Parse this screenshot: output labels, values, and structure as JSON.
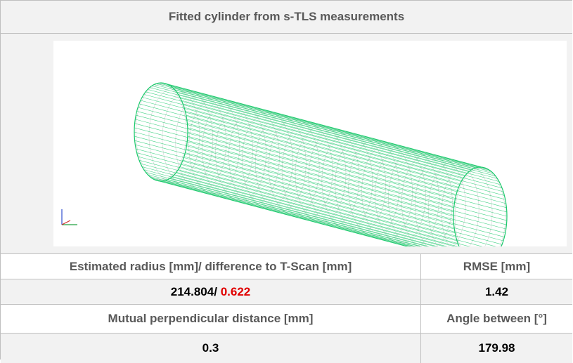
{
  "title": "Fitted cylinder from s-TLS measurements",
  "table": {
    "rows": [
      [
        "Estimated radius [mm]/ difference to T-Scan [mm]",
        "RMSE [mm]"
      ],
      [
        {
          "radius": "214.804/",
          "difference": "0.622"
        },
        "1.42"
      ],
      [
        "Mutual perpendicular distance [mm]",
        "Angle between [°]"
      ],
      [
        "0.3",
        "179.98"
      ]
    ]
  }
}
